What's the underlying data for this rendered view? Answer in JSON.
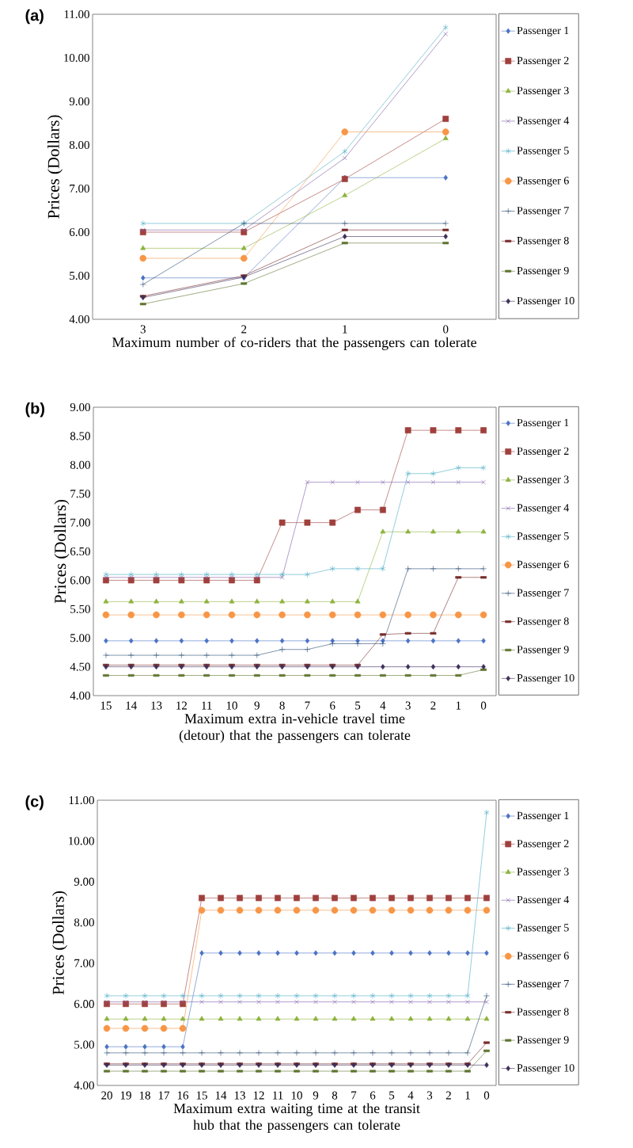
{
  "chart_data": [
    {
      "type": "line",
      "title": "(a)",
      "xlabel": "Maximum number of co-riders that the passengers can tolerate",
      "ylabel": "Prices (Dollars)",
      "categories": [
        "3",
        "2",
        "1",
        "0"
      ],
      "ylim": [
        4,
        11
      ],
      "yticks": [
        {
          "value": 4,
          "label": "4.00"
        },
        {
          "value": 5,
          "label": "5.00"
        },
        {
          "value": 6,
          "label": "6.00"
        },
        {
          "value": 7,
          "label": "7.00"
        },
        {
          "value": 8,
          "label": "8.00"
        },
        {
          "value": 9,
          "label": "9.00"
        },
        {
          "value": 10,
          "label": "10.00"
        },
        {
          "value": 11,
          "label": "11.00"
        }
      ],
      "legend": "right",
      "grid": false,
      "line_style": "solid",
      "series": [
        {
          "name": "Passenger 1",
          "color": "#4a72c4",
          "marker": "diamond",
          "values": [
            4.95,
            4.95,
            7.25,
            7.25
          ]
        },
        {
          "name": "Passenger 2",
          "color": "#a0403d",
          "marker": "square",
          "values": [
            6.0,
            6.0,
            7.22,
            8.6
          ]
        },
        {
          "name": "Passenger 3",
          "color": "#8db33e",
          "marker": "triangle",
          "values": [
            5.63,
            5.63,
            6.84,
            8.15
          ]
        },
        {
          "name": "Passenger 4",
          "color": "#7d5ba6",
          "marker": "cross",
          "values": [
            6.05,
            6.05,
            7.7,
            10.55
          ]
        },
        {
          "name": "Passenger 5",
          "color": "#4bacc6",
          "marker": "cross",
          "values": [
            6.2,
            6.2,
            7.85,
            10.7
          ]
        },
        {
          "name": "Passenger 6",
          "color": "#f79646",
          "marker": "circle",
          "values": [
            5.4,
            5.4,
            8.3,
            8.3
          ]
        },
        {
          "name": "Passenger 7",
          "color": "#2c4d75",
          "marker": "plus",
          "values": [
            4.8,
            6.2,
            6.2,
            6.2
          ]
        },
        {
          "name": "Passenger 8",
          "color": "#772c2a",
          "marker": "square",
          "values": [
            4.53,
            5.0,
            6.05,
            6.05
          ]
        },
        {
          "name": "Passenger 9",
          "color": "#5f7530",
          "marker": "square",
          "values": [
            4.35,
            4.82,
            5.75,
            5.75
          ]
        },
        {
          "name": "Passenger 10",
          "color": "#3e2f5b",
          "marker": "diamond",
          "values": [
            4.5,
            4.97,
            5.9,
            5.9
          ]
        }
      ]
    },
    {
      "type": "line",
      "title": "(b)",
      "xlabel": "Maximum extra in-vehicle travel time (detour) that the passengers can tolerate",
      "ylabel": "Prices (Dollars)",
      "categories": [
        "15",
        "14",
        "13",
        "12",
        "11",
        "10",
        "9",
        "8",
        "7",
        "6",
        "5",
        "4",
        "3",
        "2",
        "1",
        "0"
      ],
      "ylim": [
        4,
        9
      ],
      "yticks": [
        {
          "value": 4,
          "label": "4.00"
        },
        {
          "value": 4.5,
          "label": "4.50"
        },
        {
          "value": 5,
          "label": "5.00"
        },
        {
          "value": 5.5,
          "label": "5.50"
        },
        {
          "value": 6,
          "label": "6.00"
        },
        {
          "value": 6.5,
          "label": "6.50"
        },
        {
          "value": 7,
          "label": "7.00"
        },
        {
          "value": 7.5,
          "label": "7.50"
        },
        {
          "value": 8,
          "label": "8.00"
        },
        {
          "value": 8.5,
          "label": "8.50"
        },
        {
          "value": 9,
          "label": "9.00"
        }
      ],
      "legend": "right",
      "grid": false,
      "line_style": "solid",
      "series": [
        {
          "name": "Passenger 1",
          "color": "#4a72c4",
          "marker": "diamond",
          "values": [
            4.95,
            4.95,
            4.95,
            4.95,
            4.95,
            4.95,
            4.95,
            4.95,
            4.95,
            4.95,
            4.95,
            4.95,
            4.95,
            4.95,
            4.95,
            4.95
          ]
        },
        {
          "name": "Passenger 2",
          "color": "#a0403d",
          "marker": "square",
          "values": [
            6.0,
            6.0,
            6.0,
            6.0,
            6.0,
            6.0,
            6.0,
            7.0,
            7.0,
            7.0,
            7.22,
            7.22,
            8.6,
            8.6,
            8.6,
            8.6
          ]
        },
        {
          "name": "Passenger 3",
          "color": "#8db33e",
          "marker": "triangle",
          "values": [
            5.63,
            5.63,
            5.63,
            5.63,
            5.63,
            5.63,
            5.63,
            5.63,
            5.63,
            5.63,
            5.63,
            6.84,
            6.84,
            6.84,
            6.84,
            6.84
          ]
        },
        {
          "name": "Passenger 4",
          "color": "#7d5ba6",
          "marker": "cross",
          "values": [
            6.05,
            6.05,
            6.05,
            6.05,
            6.05,
            6.05,
            6.05,
            6.05,
            7.7,
            7.7,
            7.7,
            7.7,
            7.7,
            7.7,
            7.7,
            7.7
          ]
        },
        {
          "name": "Passenger 5",
          "color": "#4bacc6",
          "marker": "cross",
          "values": [
            6.1,
            6.1,
            6.1,
            6.1,
            6.1,
            6.1,
            6.1,
            6.1,
            6.1,
            6.2,
            6.2,
            6.2,
            7.85,
            7.85,
            7.95,
            7.95
          ]
        },
        {
          "name": "Passenger 6",
          "color": "#f79646",
          "marker": "circle",
          "values": [
            5.4,
            5.4,
            5.4,
            5.4,
            5.4,
            5.4,
            5.4,
            5.4,
            5.4,
            5.4,
            5.4,
            5.4,
            5.4,
            5.4,
            5.4,
            5.4
          ]
        },
        {
          "name": "Passenger 7",
          "color": "#2c4d75",
          "marker": "plus",
          "values": [
            4.7,
            4.7,
            4.7,
            4.7,
            4.7,
            4.7,
            4.7,
            4.8,
            4.8,
            4.9,
            4.9,
            4.9,
            6.2,
            6.2,
            6.2,
            6.2
          ]
        },
        {
          "name": "Passenger 8",
          "color": "#772c2a",
          "marker": "square",
          "values": [
            4.53,
            4.53,
            4.53,
            4.53,
            4.53,
            4.53,
            4.53,
            4.53,
            4.53,
            4.53,
            4.53,
            5.06,
            5.08,
            5.08,
            6.05,
            6.05
          ]
        },
        {
          "name": "Passenger 9",
          "color": "#5f7530",
          "marker": "square",
          "values": [
            4.35,
            4.35,
            4.35,
            4.35,
            4.35,
            4.35,
            4.35,
            4.35,
            4.35,
            4.35,
            4.35,
            4.35,
            4.35,
            4.35,
            4.35,
            4.45
          ]
        },
        {
          "name": "Passenger 10",
          "color": "#3e2f5b",
          "marker": "diamond",
          "values": [
            4.5,
            4.5,
            4.5,
            4.5,
            4.5,
            4.5,
            4.5,
            4.5,
            4.5,
            4.5,
            4.5,
            4.5,
            4.5,
            4.5,
            4.5,
            4.5
          ]
        }
      ]
    },
    {
      "type": "line",
      "title": "(c)",
      "xlabel": "Maximum extra waiting time at the transit hub that the passengers can tolerate",
      "ylabel": "Prices (Dollars)",
      "categories": [
        "20",
        "19",
        "18",
        "17",
        "16",
        "15",
        "14",
        "13",
        "12",
        "11",
        "10",
        "9",
        "8",
        "7",
        "6",
        "5",
        "4",
        "3",
        "2",
        "1",
        "0"
      ],
      "ylim": [
        4,
        11
      ],
      "yticks": [
        {
          "value": 4,
          "label": "4.00"
        },
        {
          "value": 5,
          "label": "5.00"
        },
        {
          "value": 6,
          "label": "6.00"
        },
        {
          "value": 7,
          "label": "7.00"
        },
        {
          "value": 8,
          "label": "8.00"
        },
        {
          "value": 9,
          "label": "9.00"
        },
        {
          "value": 10,
          "label": "10.00"
        },
        {
          "value": 11,
          "label": "11.00"
        }
      ],
      "legend": "right",
      "grid": false,
      "line_style": "solid",
      "series": [
        {
          "name": "Passenger 1",
          "color": "#4a72c4",
          "marker": "diamond",
          "values": [
            4.95,
            4.95,
            4.95,
            4.95,
            4.95,
            7.25,
            7.25,
            7.25,
            7.25,
            7.25,
            7.25,
            7.25,
            7.25,
            7.25,
            7.25,
            7.25,
            7.25,
            7.25,
            7.25,
            7.25,
            7.25
          ]
        },
        {
          "name": "Passenger 2",
          "color": "#a0403d",
          "marker": "square",
          "values": [
            6.0,
            6.0,
            6.0,
            6.0,
            6.0,
            8.6,
            8.6,
            8.6,
            8.6,
            8.6,
            8.6,
            8.6,
            8.6,
            8.6,
            8.6,
            8.6,
            8.6,
            8.6,
            8.6,
            8.6,
            8.6
          ]
        },
        {
          "name": "Passenger 3",
          "color": "#8db33e",
          "marker": "triangle",
          "values": [
            5.63,
            5.63,
            5.63,
            5.63,
            5.63,
            5.63,
            5.63,
            5.63,
            5.63,
            5.63,
            5.63,
            5.63,
            5.63,
            5.63,
            5.63,
            5.63,
            5.63,
            5.63,
            5.63,
            5.63,
            5.63
          ]
        },
        {
          "name": "Passenger 4",
          "color": "#7d5ba6",
          "marker": "cross",
          "values": [
            6.05,
            6.05,
            6.05,
            6.05,
            6.05,
            6.05,
            6.05,
            6.05,
            6.05,
            6.05,
            6.05,
            6.05,
            6.05,
            6.05,
            6.05,
            6.05,
            6.05,
            6.05,
            6.05,
            6.05,
            6.05
          ]
        },
        {
          "name": "Passenger 5",
          "color": "#4bacc6",
          "marker": "cross",
          "values": [
            6.2,
            6.2,
            6.2,
            6.2,
            6.2,
            6.2,
            6.2,
            6.2,
            6.2,
            6.2,
            6.2,
            6.2,
            6.2,
            6.2,
            6.2,
            6.2,
            6.2,
            6.2,
            6.2,
            6.2,
            10.7
          ]
        },
        {
          "name": "Passenger 6",
          "color": "#f79646",
          "marker": "circle",
          "values": [
            5.4,
            5.4,
            5.4,
            5.4,
            5.4,
            8.3,
            8.3,
            8.3,
            8.3,
            8.3,
            8.3,
            8.3,
            8.3,
            8.3,
            8.3,
            8.3,
            8.3,
            8.3,
            8.3,
            8.3,
            8.3
          ]
        },
        {
          "name": "Passenger 7",
          "color": "#2c4d75",
          "marker": "plus",
          "values": [
            4.8,
            4.8,
            4.8,
            4.8,
            4.8,
            4.8,
            4.8,
            4.8,
            4.8,
            4.8,
            4.8,
            4.8,
            4.8,
            4.8,
            4.8,
            4.8,
            4.8,
            4.8,
            4.8,
            4.8,
            6.2
          ]
        },
        {
          "name": "Passenger 8",
          "color": "#772c2a",
          "marker": "square",
          "values": [
            4.53,
            4.53,
            4.53,
            4.53,
            4.53,
            4.53,
            4.53,
            4.53,
            4.53,
            4.53,
            4.53,
            4.53,
            4.53,
            4.53,
            4.53,
            4.53,
            4.53,
            4.53,
            4.53,
            4.53,
            5.05
          ]
        },
        {
          "name": "Passenger 9",
          "color": "#5f7530",
          "marker": "square",
          "values": [
            4.35,
            4.35,
            4.35,
            4.35,
            4.35,
            4.35,
            4.35,
            4.35,
            4.35,
            4.35,
            4.35,
            4.35,
            4.35,
            4.35,
            4.35,
            4.35,
            4.35,
            4.35,
            4.35,
            4.35,
            4.85
          ]
        },
        {
          "name": "Passenger 10",
          "color": "#3e2f5b",
          "marker": "diamond",
          "values": [
            4.5,
            4.5,
            4.5,
            4.5,
            4.5,
            4.5,
            4.5,
            4.5,
            4.5,
            4.5,
            4.5,
            4.5,
            4.5,
            4.5,
            4.5,
            4.5,
            4.5,
            4.5,
            4.5,
            4.5,
            4.5
          ]
        }
      ]
    }
  ]
}
